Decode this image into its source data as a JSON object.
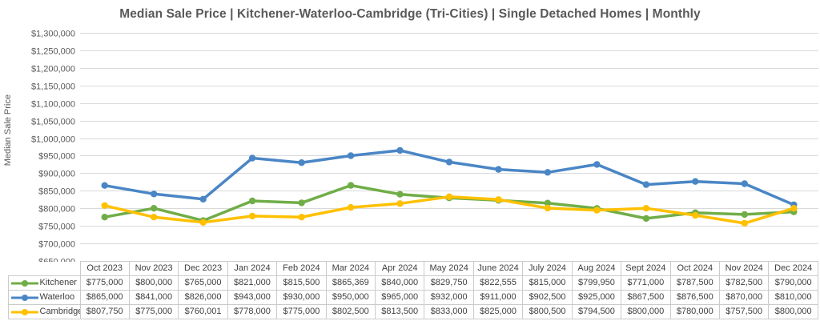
{
  "chart_data": {
    "type": "line",
    "title": "Median Sale Price | Kitchener-Waterloo-Cambridge (Tri-Cities) | Single Detached Homes | Monthly",
    "ylabel": "Median Sale Price",
    "xlabel": "",
    "ylim": [
      650000,
      1300000
    ],
    "ytick_step": 50000,
    "grid": "horizontal-only",
    "legend_position": "data-table-left",
    "value_prefix": "$",
    "categories": [
      "Oct 2023",
      "Nov 2023",
      "Dec 2023",
      "Jan 2024",
      "Feb 2024",
      "Mar 2024",
      "Apr 2024",
      "May 2024",
      "June 2024",
      "July 2024",
      "Aug 2024",
      "Sept 2024",
      "Oct 2024",
      "Nov 2024",
      "Dec 2024"
    ],
    "series": [
      {
        "name": "Kitchener",
        "color": "#70AD47",
        "values": [
          775000,
          800000,
          765000,
          821000,
          815500,
          865369,
          840000,
          829750,
          822555,
          815000,
          799950,
          771000,
          787500,
          782500,
          790000
        ]
      },
      {
        "name": "Waterloo",
        "color": "#4A86C5",
        "values": [
          865000,
          841000,
          826000,
          943000,
          930000,
          950000,
          965000,
          932000,
          911000,
          902500,
          925000,
          867500,
          876500,
          870000,
          810000
        ]
      },
      {
        "name": "Cambridge",
        "color": "#FFC000",
        "values": [
          807750,
          775000,
          760001,
          778000,
          775000,
          802500,
          813500,
          833000,
          825000,
          800500,
          794500,
          800000,
          780000,
          757500,
          800000
        ]
      }
    ]
  },
  "colors": {
    "gridline": "#D9D9D9",
    "axis_text": "#595959",
    "title_text": "#595959",
    "table_border": "#CBCBCB",
    "table_text": "#3F3F3F"
  }
}
